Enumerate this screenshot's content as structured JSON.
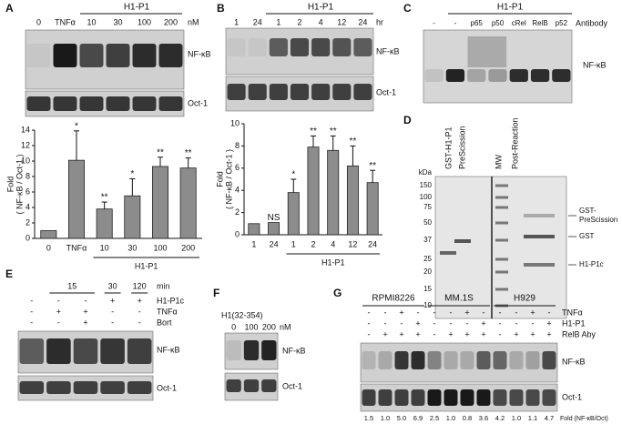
{
  "panels": {
    "a": {
      "letter": "A",
      "group": "H1-P1",
      "lanes": [
        "0",
        "TNFα",
        "10",
        "30",
        "100",
        "200"
      ],
      "unit": "nM",
      "blots": [
        "NF-κB",
        "Oct-1"
      ]
    },
    "b": {
      "letter": "B",
      "group": "H1-P1",
      "lanes": [
        "1",
        "24",
        "1",
        "2",
        "4",
        "12",
        "24"
      ],
      "unit": "hr",
      "blots": [
        "NF-κB",
        "Oct-1"
      ]
    },
    "c": {
      "letter": "C",
      "group": "H1-P1",
      "lanes": [
        "-",
        "-",
        "p65",
        "p50",
        "cRel",
        "RelB",
        "p52"
      ],
      "column_label": "Antibody",
      "blots": [
        "NF-κB"
      ]
    },
    "d": {
      "letter": "D",
      "lanes": [
        "GST-H1-P1",
        "PreScission",
        "MW",
        "Post-Reaction"
      ],
      "marker_unit": "kDa",
      "markers": [
        "150",
        "100",
        "75",
        "50",
        "37",
        "25",
        "20",
        "15",
        "10"
      ],
      "bands": [
        [
          "GST-",
          "PreScission"
        ],
        [
          "GST"
        ],
        [
          "H1-P1c"
        ]
      ]
    },
    "e": {
      "letter": "E",
      "times": [
        "15",
        "30",
        "120"
      ],
      "unit": "min",
      "treatments": [
        {
          "name": "H1-P1c",
          "signs": [
            "-",
            "-",
            "-",
            "+",
            "+"
          ]
        },
        {
          "name": "TNFα",
          "signs": [
            "-",
            "+",
            "+",
            "-",
            "-"
          ]
        },
        {
          "name": "Bort",
          "signs": [
            "-",
            "-",
            "+",
            "-",
            "-"
          ]
        }
      ],
      "blots": [
        "NF-κB",
        "Oct-1"
      ]
    },
    "f": {
      "letter": "F",
      "title": "H1(32-354)",
      "lanes": [
        "0",
        "100",
        "200"
      ],
      "unit": "nM",
      "blots": [
        "NF-κB",
        "Oct-1"
      ]
    },
    "g": {
      "letter": "G",
      "cell_lines": [
        "RPMI8226",
        "MM.1S",
        "H929"
      ],
      "treatments": [
        {
          "name": "TNFα",
          "signs": [
            "-",
            "-",
            "+",
            "-",
            "-",
            "-",
            "+",
            "-",
            "-",
            "-",
            "+",
            "-"
          ]
        },
        {
          "name": "H1-P1",
          "signs": [
            "-",
            "-",
            "-",
            "+",
            "-",
            "-",
            "-",
            "+",
            "-",
            "-",
            "-",
            "+"
          ]
        },
        {
          "name": "RelB Aby",
          "signs": [
            "-",
            "+",
            "+",
            "+",
            "-",
            "+",
            "+",
            "+",
            "-",
            "+",
            "+",
            "+"
          ]
        }
      ],
      "blots": [
        "NF-κB",
        "Oct-1"
      ],
      "fold": [
        "1.5",
        "1.0",
        "5.0",
        "6.9",
        "2.5",
        "1.0",
        "0.8",
        "3.6",
        "4.2",
        "1.0",
        "1.1",
        "4.7"
      ],
      "fold_label": "Fold (NF-κB/Oct)"
    }
  },
  "chart_data": [
    {
      "type": "bar",
      "y_label": [
        "Fold",
        "( NF-κB / Oct-1 )"
      ],
      "categories": [
        "0",
        "TNFα",
        "10",
        "30",
        "100",
        "200"
      ],
      "values": [
        1,
        10.1,
        3.8,
        5.5,
        9.3,
        9.1
      ],
      "errors": [
        null,
        3.8,
        0.9,
        2.2,
        1.2,
        1.3
      ],
      "annotations": [
        null,
        "*",
        "**",
        "*",
        "**",
        "**"
      ],
      "group_label": "H1-P1",
      "color": "#8c8c8c",
      "ylim": [
        0,
        14
      ],
      "yticks": [
        0,
        2,
        4,
        6,
        8,
        10,
        12,
        14
      ]
    },
    {
      "type": "bar",
      "y_label": [
        "Fold",
        "( NF-κB / Oct-1 )"
      ],
      "categories": [
        "1",
        "24",
        "1",
        "2",
        "4",
        "12",
        "24"
      ],
      "values": [
        1,
        1.1,
        3.8,
        7.9,
        7.6,
        6.2,
        4.7
      ],
      "errors": [
        null,
        null,
        1.2,
        1.0,
        1.3,
        1.8,
        1.1
      ],
      "annotations": [
        null,
        "NS",
        "*",
        "**",
        "**",
        "**",
        "**"
      ],
      "group_label": "H1-P1",
      "color": "#8c8c8c",
      "ylim": [
        0,
        10
      ],
      "yticks": [
        0,
        2,
        4,
        6,
        8,
        10
      ]
    }
  ]
}
